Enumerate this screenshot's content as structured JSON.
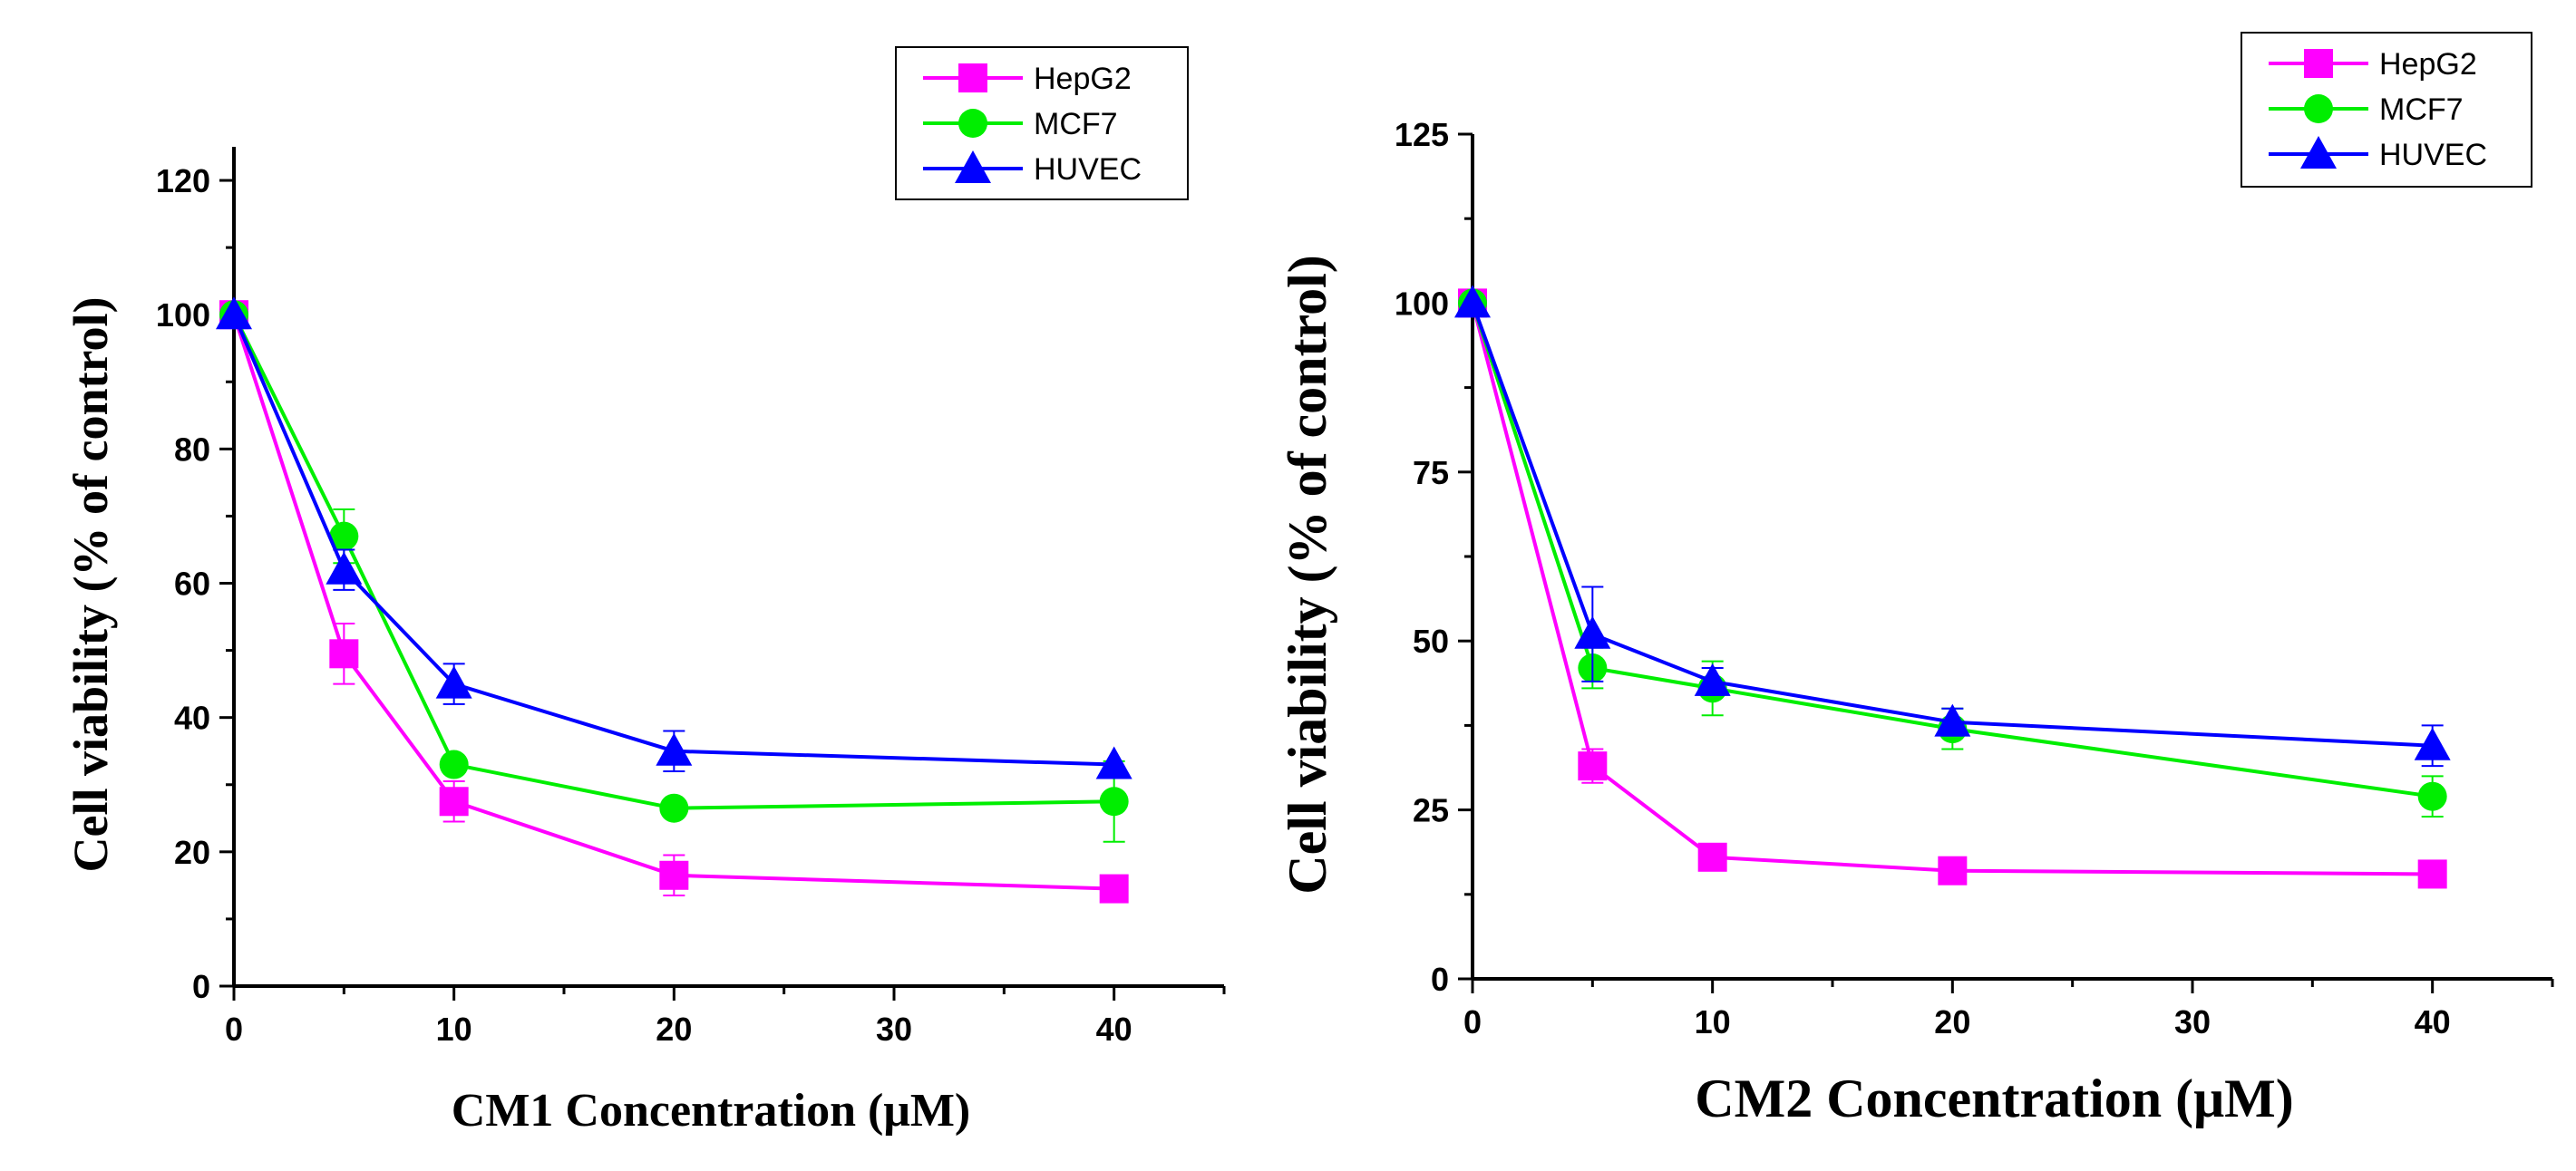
{
  "chart_data": [
    {
      "type": "line",
      "xlabel": "CM1 Concentration (μM)",
      "ylabel": "Cell viability (% of control)",
      "xlim": [
        0,
        45
      ],
      "ylim": [
        0,
        125
      ],
      "x_ticks": [
        0,
        10,
        20,
        30,
        40
      ],
      "y_ticks": [
        0,
        20,
        40,
        60,
        80,
        100,
        120
      ],
      "legend_position": "top-right",
      "x": [
        0,
        5,
        10,
        20,
        40
      ],
      "series": [
        {
          "name": "HepG2",
          "color": "#ff00ff",
          "marker": "square",
          "values": [
            100,
            49.5,
            27.5,
            16.5,
            14.5
          ],
          "errors": [
            0,
            4.5,
            3,
            3,
            0
          ]
        },
        {
          "name": "MCF7",
          "color": "#00ee00",
          "marker": "circle",
          "values": [
            100,
            67,
            33,
            26.5,
            27.5
          ],
          "errors": [
            0,
            4,
            1,
            0,
            6
          ]
        },
        {
          "name": "HUVEC",
          "color": "#0000ff",
          "marker": "triangle",
          "values": [
            100,
            62,
            45,
            35,
            33
          ],
          "errors": [
            0,
            3,
            3,
            3,
            0
          ]
        }
      ]
    },
    {
      "type": "line",
      "xlabel": "CM2 Concentration (μM)",
      "ylabel": "Cell viability (% of control)",
      "xlim": [
        0,
        45
      ],
      "ylim": [
        0,
        125
      ],
      "x_ticks": [
        0,
        10,
        20,
        30,
        40
      ],
      "y_ticks": [
        0,
        25,
        50,
        75,
        100,
        125
      ],
      "legend_position": "top-right",
      "x": [
        0,
        5,
        10,
        20,
        40
      ],
      "series": [
        {
          "name": "HepG2",
          "color": "#ff00ff",
          "marker": "square",
          "values": [
            100,
            31.5,
            18,
            16,
            15.5
          ],
          "errors": [
            0,
            2.5,
            0,
            0,
            0
          ]
        },
        {
          "name": "MCF7",
          "color": "#00ee00",
          "marker": "circle",
          "values": [
            100,
            46,
            43,
            37,
            27
          ],
          "errors": [
            0,
            3,
            4,
            3,
            3
          ]
        },
        {
          "name": "HUVEC",
          "color": "#0000ff",
          "marker": "triangle",
          "values": [
            100,
            51,
            44,
            38,
            34.5
          ],
          "errors": [
            0,
            7,
            2,
            2,
            3
          ]
        }
      ]
    }
  ]
}
